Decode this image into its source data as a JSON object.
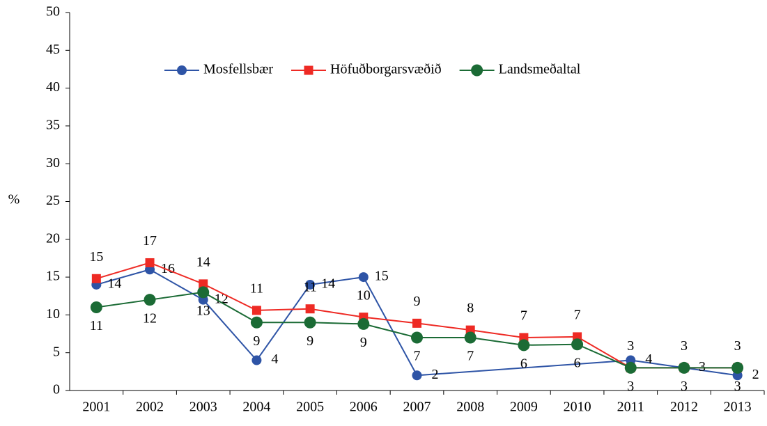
{
  "chart_data": {
    "type": "line",
    "y_label": "%",
    "categories": [
      "2001",
      "2002",
      "2003",
      "2004",
      "2005",
      "2006",
      "2007",
      "2008",
      "2009",
      "2010",
      "2011",
      "2012",
      "2013"
    ],
    "ylim": [
      0,
      50
    ],
    "yticks": [
      0,
      5,
      10,
      15,
      20,
      25,
      30,
      35,
      40,
      45,
      50
    ],
    "legend": "top",
    "series": [
      {
        "name": "Mosfellsbær",
        "color": "#2e54a6",
        "marker": "circle",
        "label_pos": "right",
        "values": [
          14,
          16,
          12,
          4,
          14,
          15,
          2,
          null,
          null,
          null,
          4,
          3,
          2
        ]
      },
      {
        "name": "Höfuðborgarsvæðið",
        "color": "#ee2a24",
        "marker": "square",
        "label_pos": "above",
        "values": [
          14.8,
          16.9,
          14.1,
          10.6,
          10.8,
          9.7,
          8.9,
          8.0,
          7.0,
          7.1,
          3.0,
          3.0,
          3.0
        ],
        "value_labels": [
          "15",
          "17",
          "14",
          "11",
          "11",
          "10",
          "9",
          "8",
          "7",
          "7",
          "3",
          "3",
          "3"
        ]
      },
      {
        "name": "Landsmeðaltal",
        "color": "#1b6b35",
        "marker": "bigcircle",
        "label_pos": "below",
        "values": [
          11,
          12,
          13,
          9,
          9,
          8.8,
          7,
          7,
          6,
          6.1,
          3,
          3,
          3
        ],
        "value_labels": [
          "11",
          "12",
          "13",
          "9",
          "9",
          "9",
          "7",
          "7",
          "6",
          "6",
          "3",
          "3",
          "3"
        ]
      }
    ]
  }
}
